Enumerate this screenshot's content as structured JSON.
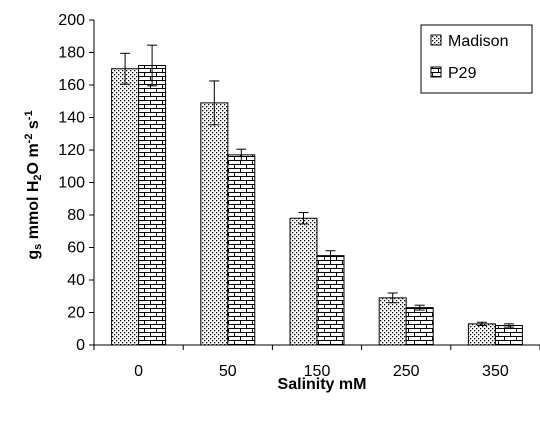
{
  "chart_data": {
    "type": "bar",
    "title": "",
    "xlabel": "Salinity mM",
    "ylabel": {
      "parts": [
        {
          "text": "g",
          "style": "normal"
        },
        {
          "text": "s",
          "style": "sub"
        },
        {
          "text": " mmol H",
          "style": "normal"
        },
        {
          "text": "2",
          "style": "sub"
        },
        {
          "text": "O m",
          "style": "normal"
        },
        {
          "text": "-2",
          "style": "sup"
        },
        {
          "text": " s",
          "style": "normal"
        },
        {
          "text": "-1",
          "style": "sup"
        }
      ]
    },
    "categories": [
      "0",
      "50",
      "150",
      "250",
      "350"
    ],
    "ylim": [
      0,
      200
    ],
    "yticks": [
      0,
      20,
      40,
      60,
      80,
      100,
      120,
      140,
      160,
      180,
      200
    ],
    "grid": false,
    "legend_position": "top-right",
    "series": [
      {
        "name": "Madison",
        "pattern": "dots",
        "values": [
          170,
          149,
          78,
          29,
          13
        ],
        "errors": [
          9.5,
          13.5,
          3.5,
          3,
          1
        ]
      },
      {
        "name": "P29",
        "pattern": "bricks",
        "values": [
          172,
          117,
          55,
          23,
          12
        ],
        "errors": [
          12.5,
          3.5,
          3,
          1.5,
          1
        ]
      }
    ]
  }
}
